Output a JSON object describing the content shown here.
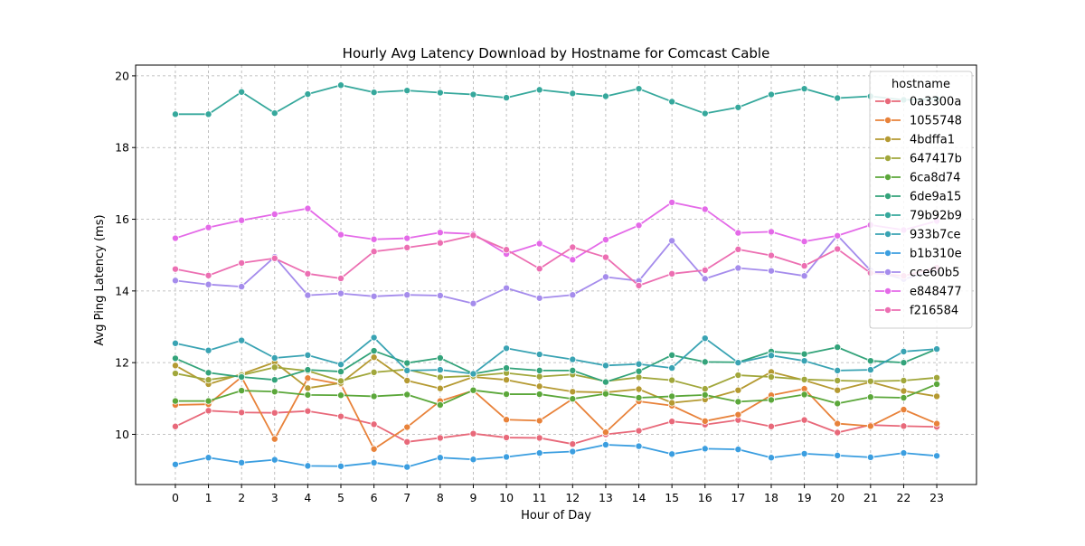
{
  "chart_data": {
    "type": "line",
    "title": "Hourly Avg Latency Download by Hostname for Comcast Cable",
    "xlabel": "Hour of Day",
    "ylabel": "Avg Ping Latency (ms)",
    "x": [
      0,
      1,
      2,
      3,
      4,
      5,
      6,
      7,
      8,
      9,
      10,
      11,
      12,
      13,
      14,
      15,
      16,
      17,
      18,
      19,
      20,
      21,
      22,
      23
    ],
    "xlim": [
      -1.2,
      24.2
    ],
    "ylim": [
      8.6,
      20.3
    ],
    "yticks": [
      10,
      12,
      14,
      16,
      18,
      20
    ],
    "grid": true,
    "legend": {
      "title": "hostname",
      "position": "top-right"
    },
    "series": [
      {
        "name": "0a3300a",
        "color": "#e8697a",
        "values": [
          10.22,
          10.66,
          10.61,
          10.6,
          10.65,
          10.5,
          10.28,
          9.79,
          9.9,
          10.02,
          9.91,
          9.9,
          9.73,
          10.0,
          10.1,
          10.36,
          10.27,
          10.4,
          10.22,
          10.4,
          10.05,
          10.26,
          10.23,
          10.21
        ]
      },
      {
        "name": "1055748",
        "color": "#e8823a",
        "values": [
          10.82,
          10.84,
          11.6,
          9.87,
          11.57,
          11.4,
          9.59,
          10.2,
          10.93,
          11.22,
          10.41,
          10.38,
          10.99,
          10.06,
          10.92,
          10.8,
          10.37,
          10.55,
          11.09,
          11.27,
          10.3,
          10.23,
          10.69,
          10.3
        ]
      },
      {
        "name": "4bdffa1",
        "color": "#b59a32",
        "values": [
          11.92,
          11.4,
          11.68,
          12.01,
          11.29,
          11.43,
          12.15,
          11.5,
          11.28,
          11.6,
          11.52,
          11.34,
          11.19,
          11.17,
          11.26,
          10.88,
          10.97,
          11.23,
          11.74,
          11.51,
          11.23,
          11.46,
          11.21,
          11.06
        ]
      },
      {
        "name": "647417b",
        "color": "#a1a73b",
        "values": [
          11.7,
          11.52,
          11.65,
          11.87,
          11.77,
          11.49,
          11.73,
          11.81,
          11.59,
          11.63,
          11.71,
          11.61,
          11.67,
          11.48,
          11.59,
          11.51,
          11.27,
          11.65,
          11.6,
          11.53,
          11.5,
          11.48,
          11.5,
          11.58
        ]
      },
      {
        "name": "6ca8d74",
        "color": "#5ba73a",
        "values": [
          10.93,
          10.93,
          11.22,
          11.19,
          11.1,
          11.09,
          11.06,
          11.11,
          10.82,
          11.23,
          11.12,
          11.12,
          10.99,
          11.13,
          11.02,
          11.06,
          11.1,
          10.91,
          10.96,
          11.11,
          10.86,
          11.04,
          11.02,
          11.4
        ]
      },
      {
        "name": "6de9a15",
        "color": "#33a37a",
        "values": [
          12.12,
          11.72,
          11.6,
          11.52,
          11.8,
          11.75,
          12.33,
          11.99,
          12.13,
          11.69,
          11.85,
          11.78,
          11.78,
          11.46,
          11.76,
          12.21,
          12.02,
          12.01,
          12.31,
          12.24,
          12.43,
          12.05,
          12.0,
          12.38
        ]
      },
      {
        "name": "79b92b9",
        "color": "#36a89c",
        "values": [
          18.93,
          18.93,
          19.55,
          18.96,
          19.49,
          19.74,
          19.54,
          19.59,
          19.53,
          19.48,
          19.39,
          19.61,
          19.51,
          19.43,
          19.64,
          19.28,
          18.95,
          19.12,
          19.48,
          19.64,
          19.38,
          19.43,
          19.33,
          19.36
        ]
      },
      {
        "name": "933b7ce",
        "color": "#39a3b3",
        "values": [
          12.54,
          12.34,
          12.62,
          12.13,
          12.21,
          11.95,
          12.7,
          11.78,
          11.8,
          11.69,
          12.4,
          12.23,
          12.09,
          11.92,
          11.96,
          11.85,
          12.68,
          12.0,
          12.2,
          12.05,
          11.78,
          11.8,
          12.31,
          12.38
        ]
      },
      {
        "name": "b1b310e",
        "color": "#3b9ee0",
        "values": [
          9.16,
          9.35,
          9.21,
          9.29,
          9.12,
          9.11,
          9.21,
          9.09,
          9.35,
          9.3,
          9.37,
          9.48,
          9.52,
          9.71,
          9.67,
          9.45,
          9.6,
          9.58,
          9.35,
          9.46,
          9.41,
          9.36,
          9.48,
          9.4
        ]
      },
      {
        "name": "cce60b5",
        "color": "#a58cec",
        "values": [
          14.29,
          14.18,
          14.12,
          14.95,
          13.88,
          13.93,
          13.85,
          13.89,
          13.87,
          13.65,
          14.08,
          13.8,
          13.89,
          14.39,
          14.28,
          15.4,
          14.34,
          14.64,
          14.56,
          14.42,
          15.55,
          14.57,
          14.33,
          14.58
        ]
      },
      {
        "name": "e848477",
        "color": "#e46ae8",
        "values": [
          15.47,
          15.77,
          15.97,
          16.14,
          16.3,
          15.57,
          15.44,
          15.47,
          15.63,
          15.59,
          15.03,
          15.32,
          14.87,
          15.43,
          15.83,
          16.47,
          16.28,
          15.62,
          15.65,
          15.38,
          15.54,
          15.84,
          15.7,
          15.95
        ]
      },
      {
        "name": "f216584",
        "color": "#ec6fb2",
        "values": [
          14.61,
          14.43,
          14.78,
          14.91,
          14.48,
          14.35,
          15.1,
          15.21,
          15.34,
          15.55,
          15.15,
          14.62,
          15.22,
          14.94,
          14.15,
          14.48,
          14.58,
          15.16,
          14.99,
          14.7,
          15.17,
          14.5,
          14.42,
          14.65
        ]
      }
    ]
  }
}
